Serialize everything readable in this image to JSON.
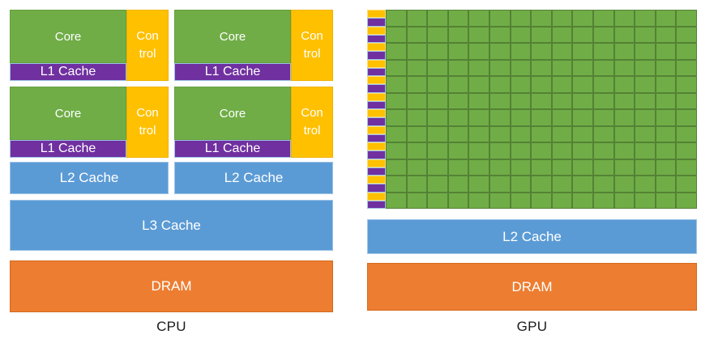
{
  "diagram": {
    "cpu": {
      "caption": "CPU",
      "core_count": 4,
      "core_label": "Core",
      "control_label": "Con trol",
      "l1_label": "L1 Cache",
      "l2_label": "L2 Cache",
      "l3_label": "L3 Cache",
      "dram_label": "DRAM"
    },
    "gpu": {
      "caption": "GPU",
      "grid_rows": 12,
      "grid_cols": 15,
      "l2_label": "L2 Cache",
      "dram_label": "DRAM"
    },
    "colors": {
      "core_green": "#70AD47",
      "green_edge": "#548235",
      "green_soft_edge": "#66A03C",
      "control_yellow": "#FFC000",
      "yellow_soft_edge": "#EDB200",
      "cache_purple": "#7030A0",
      "cache_blue": "#5B9BD5",
      "dram_orange": "#ED7D31",
      "orange_edge": "#D26A1E",
      "pale_blue_edge": "#9DC3E6",
      "text_white": "#FFFFFF",
      "caption_black": "#1A1A1A"
    }
  }
}
